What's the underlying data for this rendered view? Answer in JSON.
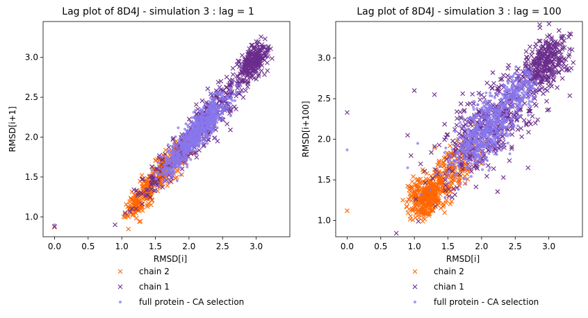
{
  "chart_data": [
    {
      "type": "scatter",
      "title": "Lag plot of 8D4J - simulation 3 : lag = 1",
      "xlabel": "RMSD[i]",
      "ylabel": "RMSD[i+1]",
      "xlim": [
        -0.17,
        3.5
      ],
      "ylim": [
        0.75,
        3.45
      ],
      "xticks": [
        "0.0",
        "0.5",
        "1.0",
        "1.5",
        "2.0",
        "2.5",
        "3.0"
      ],
      "xtick_values": [
        0.0,
        0.5,
        1.0,
        1.5,
        2.0,
        2.5,
        3.0
      ],
      "yticks": [
        "1.0",
        "1.5",
        "2.0",
        "2.5",
        "3.0"
      ],
      "ytick_values": [
        1.0,
        1.5,
        2.0,
        2.5,
        3.0
      ],
      "grid": false,
      "legend": "below",
      "series": [
        {
          "name": "chain 2",
          "marker": "x",
          "color": "#ff6600",
          "clusters": [
            {
              "cx": 1.55,
              "cy": 1.5,
              "spread_major": 0.3,
              "spread_minor": 0.07,
              "angle_deg": 45,
              "n": 300
            },
            {
              "cx": 1.2,
              "cy": 1.15,
              "spread_major": 0.12,
              "spread_minor": 0.05,
              "angle_deg": 45,
              "n": 60
            },
            {
              "cx": 1.9,
              "cy": 1.85,
              "spread_major": 0.18,
              "spread_minor": 0.06,
              "angle_deg": 45,
              "n": 80
            }
          ],
          "points": [
            [
              0.0,
              0.87
            ]
          ]
        },
        {
          "name": "chain 1",
          "marker": "x",
          "color": "#6b2d8c",
          "clusters": [
            {
              "cx": 2.95,
              "cy": 2.95,
              "spread_major": 0.14,
              "spread_minor": 0.08,
              "angle_deg": 45,
              "n": 260
            },
            {
              "cx": 2.3,
              "cy": 2.25,
              "spread_major": 0.42,
              "spread_minor": 0.1,
              "angle_deg": 45,
              "n": 320
            },
            {
              "cx": 1.5,
              "cy": 1.45,
              "spread_major": 0.25,
              "spread_minor": 0.07,
              "angle_deg": 45,
              "n": 50
            }
          ],
          "points": [
            [
              0.0,
              0.88
            ],
            [
              0.9,
              0.9
            ],
            [
              1.05,
              1.05
            ]
          ]
        },
        {
          "name": "full protein - CA selection",
          "marker": "o",
          "color": "#8877ee",
          "clusters": [
            {
              "cx": 2.15,
              "cy": 2.1,
              "spread_major": 0.32,
              "spread_minor": 0.08,
              "angle_deg": 45,
              "n": 700
            },
            {
              "cx": 1.75,
              "cy": 1.65,
              "spread_major": 0.15,
              "spread_minor": 0.06,
              "angle_deg": 45,
              "n": 120
            }
          ],
          "points": [
            [
              0.0,
              0.9
            ],
            [
              2.45,
              2.55
            ]
          ]
        }
      ]
    },
    {
      "type": "scatter",
      "title": "Lag plot of 8D4J - simulation 3 : lag = 100",
      "xlabel": "RMSD[i]",
      "ylabel": "RMSD[i+100]",
      "xlim": [
        -0.17,
        3.5
      ],
      "ylim": [
        0.8,
        3.45
      ],
      "xticks": [
        "0.0",
        "0.5",
        "1.0",
        "1.5",
        "2.0",
        "2.5",
        "3.0"
      ],
      "xtick_values": [
        0.0,
        0.5,
        1.0,
        1.5,
        2.0,
        2.5,
        3.0
      ],
      "yticks": [
        "1.0",
        "1.5",
        "2.0",
        "2.5",
        "3.0"
      ],
      "ytick_values": [
        1.0,
        1.5,
        2.0,
        2.5,
        3.0
      ],
      "grid": false,
      "legend": "below",
      "series": [
        {
          "name": "chain 2",
          "marker": "x",
          "color": "#ff6600",
          "clusters": [
            {
              "cx": 1.2,
              "cy": 1.3,
              "spread_major": 0.15,
              "spread_minor": 0.12,
              "angle_deg": 30,
              "n": 320
            },
            {
              "cx": 1.55,
              "cy": 1.6,
              "spread_major": 0.25,
              "spread_minor": 0.12,
              "angle_deg": 40,
              "n": 180
            }
          ],
          "points": [
            [
              0.0,
              1.12
            ]
          ]
        },
        {
          "name": "chian 1",
          "marker": "x",
          "color": "#6b2d8c",
          "clusters": [
            {
              "cx": 2.95,
              "cy": 2.95,
              "spread_major": 0.2,
              "spread_minor": 0.12,
              "angle_deg": 45,
              "n": 300
            },
            {
              "cx": 2.2,
              "cy": 2.2,
              "spread_major": 0.5,
              "spread_minor": 0.2,
              "angle_deg": 45,
              "n": 380
            },
            {
              "cx": 1.9,
              "cy": 2.05,
              "spread_major": 0.35,
              "spread_minor": 0.25,
              "angle_deg": 45,
              "n": 80
            }
          ],
          "points": [
            [
              0.0,
              2.33
            ],
            [
              1.0,
              2.6
            ],
            [
              0.9,
              2.05
            ],
            [
              1.3,
              2.55
            ],
            [
              0.95,
              1.8
            ],
            [
              3.3,
              2.85
            ],
            [
              2.7,
              2.35
            ],
            [
              2.8,
              2.2
            ]
          ]
        },
        {
          "name": "full protein - CA selection",
          "marker": "o",
          "color": "#8877ee",
          "clusters": [
            {
              "cx": 2.05,
              "cy": 2.1,
              "spread_major": 0.35,
              "spread_minor": 0.15,
              "angle_deg": 45,
              "n": 650
            },
            {
              "cx": 2.55,
              "cy": 2.6,
              "spread_major": 0.15,
              "spread_minor": 0.1,
              "angle_deg": 45,
              "n": 150
            }
          ],
          "points": [
            [
              0.0,
              1.87
            ],
            [
              1.05,
              1.95
            ],
            [
              0.9,
              1.65
            ]
          ]
        }
      ]
    }
  ]
}
